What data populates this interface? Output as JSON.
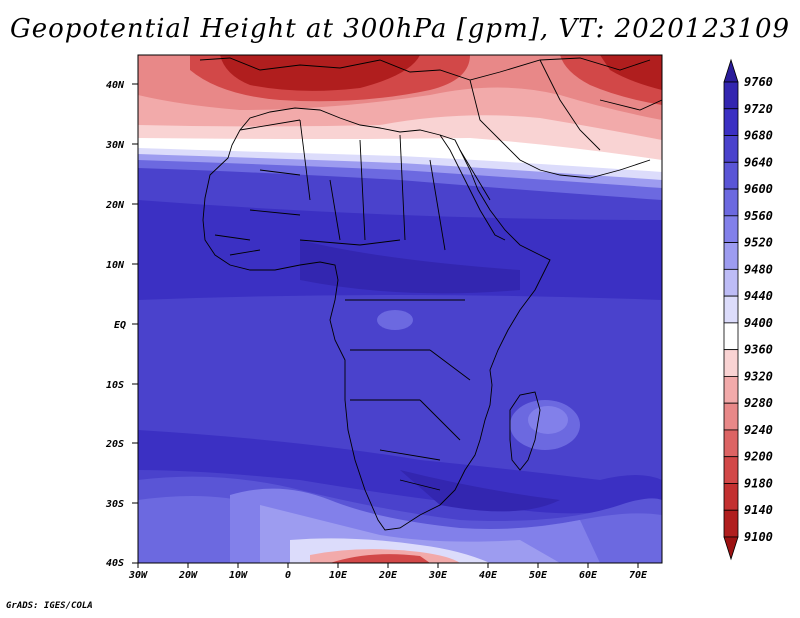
{
  "title": "Geopotential Height at 300hPa [gpm], VT: 2020123109",
  "credit": "GrADS: IGES/COLA",
  "lat_labels": [
    "40N",
    "30N",
    "20N",
    "10N",
    "EQ",
    "10S",
    "20S",
    "30S",
    "40S"
  ],
  "lon_labels": [
    "30W",
    "20W",
    "10W",
    "0",
    "10E",
    "20E",
    "30E",
    "40E",
    "50E",
    "60E",
    "70E"
  ],
  "colorbar": {
    "levels": [
      "9760",
      "9720",
      "9680",
      "9640",
      "9600",
      "9560",
      "9520",
      "9480",
      "9440",
      "9400",
      "9360",
      "9320",
      "9280",
      "9240",
      "9200",
      "9180",
      "9140",
      "9100"
    ],
    "colors": [
      "#2a1c9a",
      "#3326b0",
      "#3b30c3",
      "#4a42cc",
      "#5a55d6",
      "#6c69e0",
      "#8280ea",
      "#9d9cf0",
      "#bdbcf6",
      "#dcdcfb",
      "#ffffff",
      "#f9d3d3",
      "#f2aaaa",
      "#e88888",
      "#dc6464",
      "#d24848",
      "#c33030",
      "#b01e1e",
      "#9c1212"
    ]
  }
}
